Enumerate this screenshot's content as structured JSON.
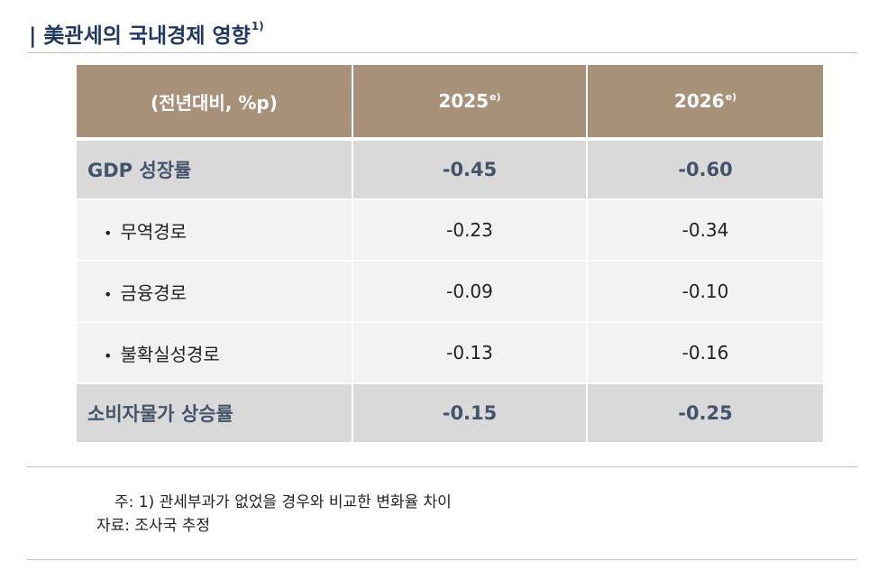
{
  "title": {
    "separator": "|",
    "text": "美관세의 국내경제 영향",
    "footnote_mark": "1)"
  },
  "table": {
    "header": {
      "label": "(전년대비, %p)",
      "columns": [
        {
          "year": "2025",
          "mark": "e)"
        },
        {
          "year": "2026",
          "mark": "e)"
        }
      ]
    },
    "rows": [
      {
        "type": "main",
        "label": "GDP 성장률",
        "values": [
          "-0.45",
          "-0.60"
        ]
      },
      {
        "type": "sub",
        "bullet": "•",
        "label": "무역경로",
        "values": [
          "-0.23",
          "-0.34"
        ]
      },
      {
        "type": "sub",
        "bullet": "•",
        "label": "금융경로",
        "values": [
          "-0.09",
          "-0.10"
        ]
      },
      {
        "type": "sub",
        "bullet": "•",
        "label": "불확실성경로",
        "values": [
          "-0.13",
          "-0.16"
        ]
      },
      {
        "type": "main",
        "label": "소비자물가 상승률",
        "values": [
          "-0.15",
          "-0.25"
        ]
      }
    ]
  },
  "notes": {
    "note1": "주: 1) 관세부과가 없었을 경우와 비교한 변화율 차이",
    "source": "자료: 조사국 추정"
  },
  "colors": {
    "header_bg": "#a89179",
    "main_row_bg": "#d9d9d9",
    "sub_row_bg": "#f2f2f2",
    "main_row_text": "#44546a",
    "title_text": "#1f3864"
  }
}
